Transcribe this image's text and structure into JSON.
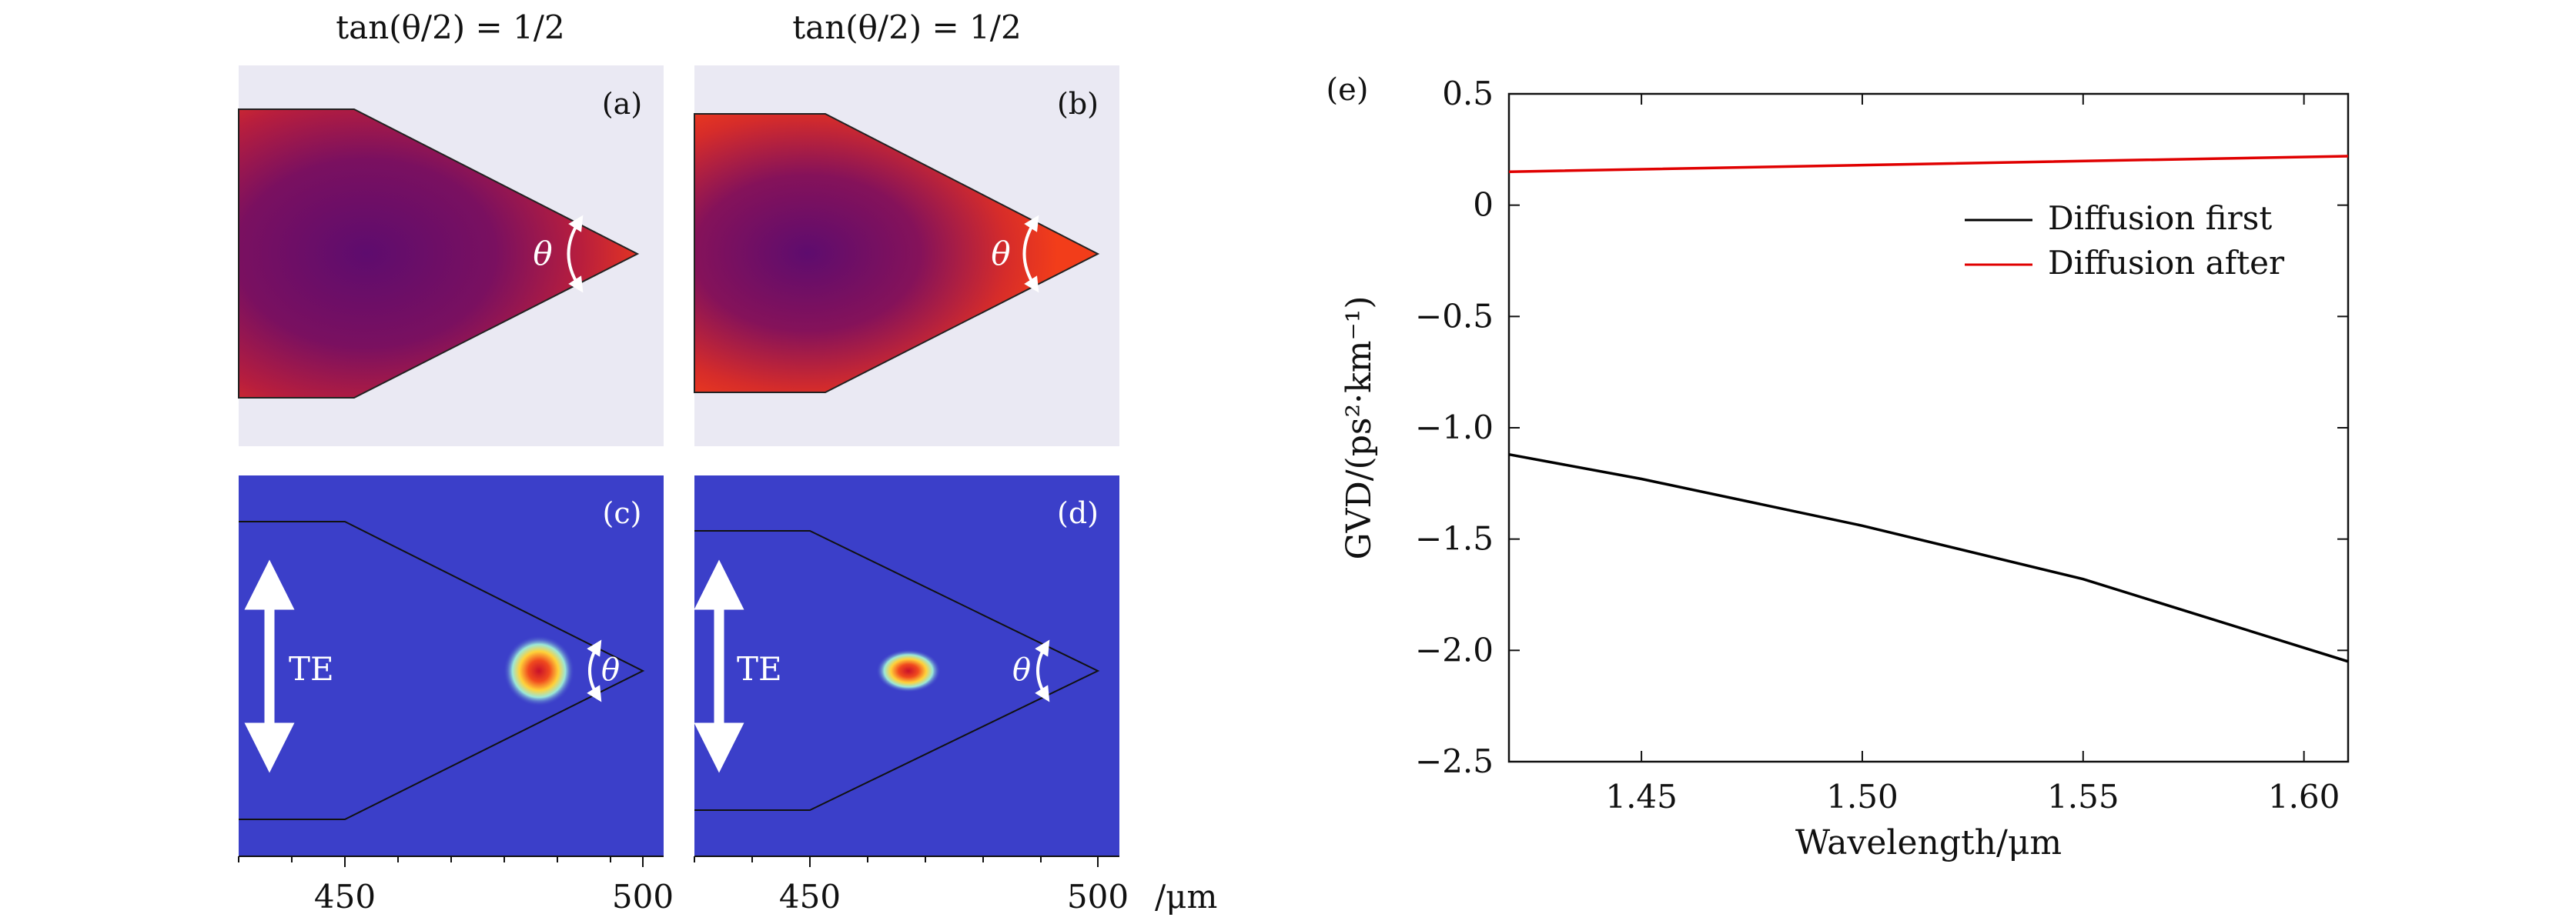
{
  "panels": {
    "a": {
      "label": "(a)",
      "title": "tan(θ/2) = 1/2",
      "angle_label": "θ"
    },
    "b": {
      "label": "(b)",
      "title": "tan(θ/2) = 1/2",
      "angle_label": "θ"
    },
    "c": {
      "label": "(c)",
      "angle_label": "θ",
      "polarization": "TE"
    },
    "d": {
      "label": "(d)",
      "angle_label": "θ",
      "polarization": "TE"
    }
  },
  "mode_axis": {
    "ticks": [
      "450",
      "500"
    ],
    "unit": "/μm"
  },
  "colors": {
    "mode_bg": "#3b3fc9",
    "profile_bg": "#eae9f3",
    "red": "#e53a1e",
    "purple": "#6a0e6a"
  },
  "chart_data": {
    "type": "line",
    "label": "(e)",
    "xlabel": "Wavelength/μm",
    "ylabel": "GVD/(ps²·km⁻¹)",
    "xlim": [
      1.42,
      1.61
    ],
    "ylim": [
      -2.5,
      0.5
    ],
    "xticks": [
      1.45,
      1.5,
      1.55,
      1.6
    ],
    "xtick_labels": [
      "1.45",
      "1.50",
      "1.55",
      "1.60"
    ],
    "yticks": [
      0.5,
      0,
      -0.5,
      -1.0,
      -1.5,
      -2.0,
      -2.5
    ],
    "ytick_labels": [
      "0.5",
      "0",
      "−0.5",
      "−1.0",
      "−1.5",
      "−2.0",
      "−2.5"
    ],
    "legend_position": "upper-right",
    "grid": false,
    "series": [
      {
        "name": "Diffusion first",
        "color": "#000000",
        "x": [
          1.42,
          1.45,
          1.5,
          1.55,
          1.61
        ],
        "y": [
          -1.12,
          -1.23,
          -1.44,
          -1.68,
          -2.05
        ]
      },
      {
        "name": "Diffusion after",
        "color": "#e00000",
        "x": [
          1.42,
          1.5,
          1.61
        ],
        "y": [
          0.15,
          0.18,
          0.22
        ]
      }
    ]
  }
}
